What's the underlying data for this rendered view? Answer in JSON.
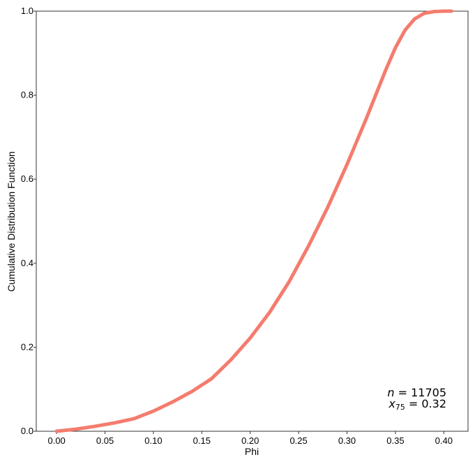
{
  "chart_data": {
    "type": "line",
    "title": "",
    "xlabel": "Phi",
    "ylabel": "Cumulative Distribution Function",
    "xlim": [
      -0.021,
      0.425
    ],
    "ylim": [
      0.0,
      1.0
    ],
    "x_ticks": [
      "0.00",
      "0.05",
      "0.10",
      "0.15",
      "0.20",
      "0.25",
      "0.30",
      "0.35",
      "0.40"
    ],
    "x_tick_values": [
      0.0,
      0.05,
      0.1,
      0.15,
      0.2,
      0.25,
      0.3,
      0.35,
      0.4
    ],
    "y_ticks": [
      "0.0",
      "0.2",
      "0.4",
      "0.6",
      "0.8",
      "1.0"
    ],
    "y_tick_values": [
      0.0,
      0.2,
      0.4,
      0.6,
      0.8,
      1.0
    ],
    "grid": false,
    "series": [
      {
        "color": "#f47c6e",
        "x": [
          0.0,
          0.02,
          0.04,
          0.06,
          0.08,
          0.1,
          0.12,
          0.14,
          0.16,
          0.18,
          0.2,
          0.22,
          0.24,
          0.26,
          0.28,
          0.3,
          0.32,
          0.34,
          0.35,
          0.36,
          0.37,
          0.38,
          0.39,
          0.4,
          0.408
        ],
        "y": [
          0.0,
          0.005,
          0.012,
          0.02,
          0.03,
          0.048,
          0.07,
          0.095,
          0.125,
          0.17,
          0.222,
          0.283,
          0.355,
          0.44,
          0.533,
          0.635,
          0.745,
          0.86,
          0.913,
          0.955,
          0.982,
          0.995,
          0.999,
          1.0,
          1.0
        ]
      }
    ],
    "annotations": {
      "n_label": "n",
      "n_eq": " = 11705",
      "x_label": "x",
      "x_sub": "75",
      "x_eq": " = 0.32"
    }
  }
}
